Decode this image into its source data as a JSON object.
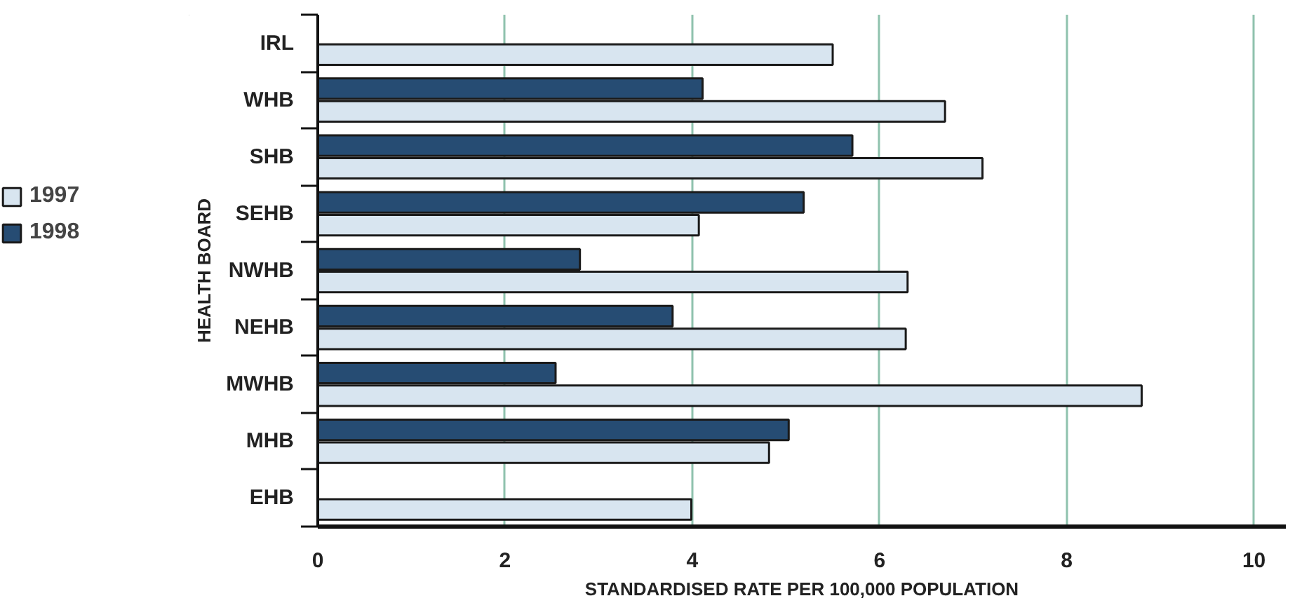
{
  "chart_data": {
    "type": "bar",
    "orientation": "horizontal",
    "xlabel": "STANDARDISED RATE PER 100,000 POPULATION",
    "ylabel": "HEALTH BOARD",
    "categories": [
      "IRL",
      "WHB",
      "SHB",
      "SEHB",
      "NWHB",
      "NEHB",
      "MWHB",
      "MHB",
      "EHB"
    ],
    "series": [
      {
        "name": "1997",
        "color": "#d8e5f0",
        "values": [
          5.5,
          6.7,
          7.1,
          4.07,
          6.3,
          6.28,
          8.8,
          4.82,
          3.99
        ]
      },
      {
        "name": "1998",
        "color": "#264c73",
        "values": [
          null,
          4.11,
          5.71,
          5.19,
          2.8,
          3.79,
          2.54,
          5.03,
          null
        ]
      }
    ],
    "xlim": [
      0,
      10.34
    ],
    "xticks": [
      0,
      2,
      4,
      6,
      8,
      10
    ],
    "grid": "x",
    "legend": "left"
  }
}
